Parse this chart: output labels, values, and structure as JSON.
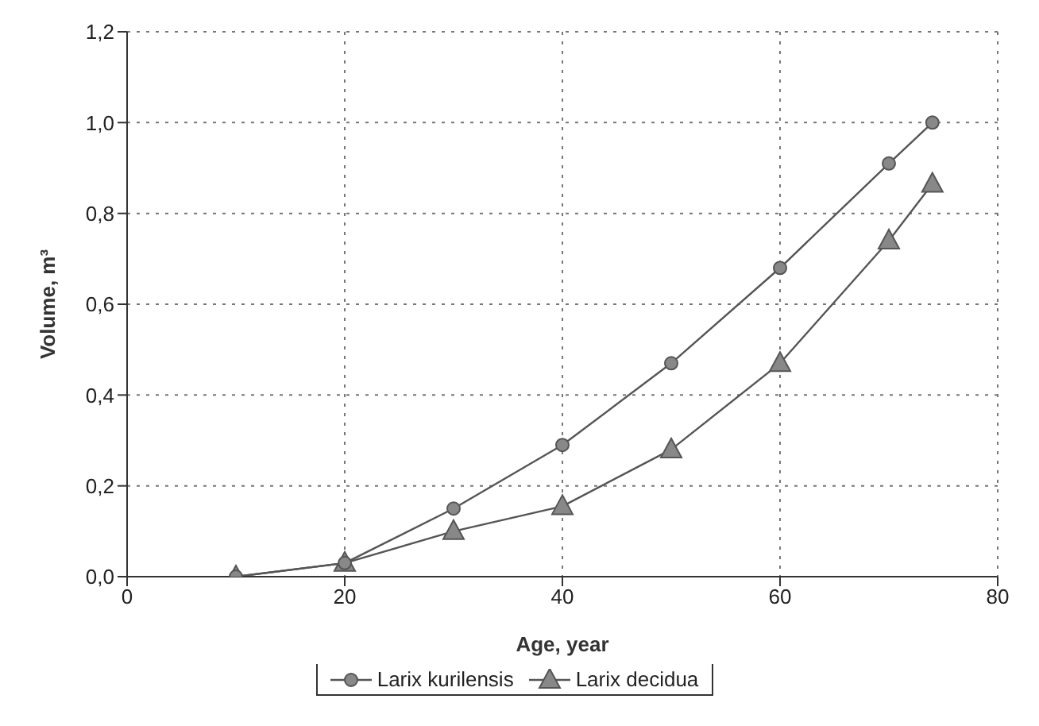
{
  "chart_data": {
    "type": "line",
    "xlabel": "Age, year",
    "ylabel": "Volume, m³",
    "xlim": [
      0,
      80
    ],
    "xticks": [
      0,
      20,
      40,
      60,
      80
    ],
    "ylim": [
      0,
      1.2
    ],
    "yticks": [
      {
        "value": 0,
        "label": "0,0"
      },
      {
        "value": 0.2,
        "label": "0,2"
      },
      {
        "value": 0.4,
        "label": "0,4"
      },
      {
        "value": 0.6,
        "label": "0,6"
      },
      {
        "value": 0.8,
        "label": "0,8"
      },
      {
        "value": 1,
        "label": "1,0"
      },
      {
        "value": 1.2,
        "label": "1,2"
      }
    ],
    "grid": true,
    "legend": "bottom",
    "line_style": "solid",
    "series": [
      {
        "name": "Larix kurilensis",
        "color": "#555555",
        "marker": "circle",
        "x": [
          10,
          20,
          30,
          40,
          50,
          60,
          70,
          74
        ],
        "values": [
          0,
          0.03,
          0.15,
          0.29,
          0.47,
          0.68,
          0.91,
          1.0
        ]
      },
      {
        "name": "Larix decidua",
        "color": "#555555",
        "marker": "triangle",
        "x": [
          10,
          20,
          30,
          40,
          50,
          60,
          70,
          74
        ],
        "values": [
          0,
          0.03,
          0.1,
          0.155,
          0.28,
          0.47,
          0.74,
          0.865
        ]
      }
    ]
  }
}
